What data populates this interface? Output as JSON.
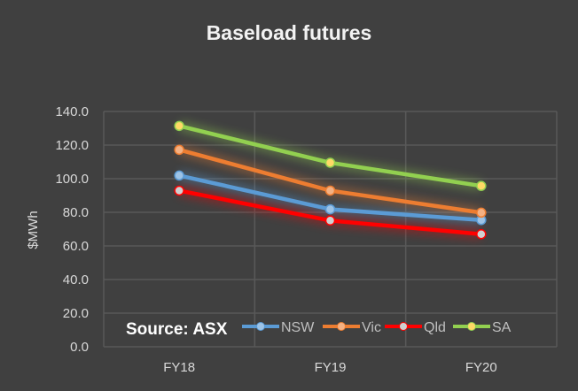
{
  "chart_data": {
    "type": "line",
    "title": "Baseload futures",
    "xlabel": "",
    "ylabel": "$MWh",
    "categories": [
      "FY18",
      "FY19",
      "FY20"
    ],
    "ylim": [
      0,
      140
    ],
    "yticks": [
      "0.0",
      "20.0",
      "40.0",
      "60.0",
      "80.0",
      "100.0",
      "120.0",
      "140.0"
    ],
    "grid": true,
    "legend_position": "bottom-inside",
    "annotation": "Source: ASX",
    "series": [
      {
        "name": "NSW",
        "values": [
          101.9,
          81.8,
          75.4
        ],
        "color": "#5b9bd5",
        "marker": "#9dc3e6"
      },
      {
        "name": "Vic",
        "values": [
          117.2,
          92.9,
          79.8
        ],
        "color": "#ed7d31",
        "marker": "#f4b183"
      },
      {
        "name": "Qld",
        "values": [
          92.9,
          75.1,
          67.0
        ],
        "color": "#ff0000",
        "marker": "#d0d0d0"
      },
      {
        "name": "SA",
        "values": [
          131.4,
          109.5,
          95.7
        ],
        "color": "#92d050",
        "marker": "#ffd966"
      }
    ]
  }
}
